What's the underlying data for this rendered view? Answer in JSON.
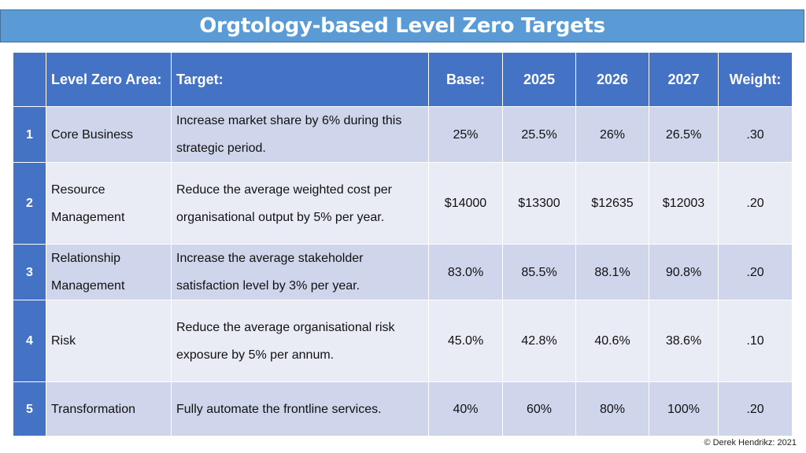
{
  "title": "Orgtology-based Level Zero Targets",
  "table": {
    "headers": {
      "area": "Level Zero Area:",
      "target": "Target:",
      "base": "Base:",
      "y2025": "2025",
      "y2026": "2026",
      "y2027": "2027",
      "weight": "Weight:"
    },
    "rows": [
      {
        "num": "1",
        "area": [
          "Core Business"
        ],
        "target": [
          "Increase market share by 6% during this",
          "strategic period."
        ],
        "base": "25%",
        "y2025": "25.5%",
        "y2026": "26%",
        "y2027": "26.5%",
        "weight": ".30"
      },
      {
        "num": "2",
        "area": [
          "Resource",
          "Management"
        ],
        "target": [
          "Reduce the average weighted cost per",
          "organisational output by 5% per year."
        ],
        "base": "$14000",
        "y2025": "$13300",
        "y2026": "$12635",
        "y2027": "$12003",
        "weight": ".20"
      },
      {
        "num": "3",
        "area": [
          "Relationship",
          "Management"
        ],
        "target": [
          "Increase the average stakeholder",
          "satisfaction level by 3% per year."
        ],
        "base": "83.0%",
        "y2025": "85.5%",
        "y2026": "88.1%",
        "y2027": "90.8%",
        "weight": ".20"
      },
      {
        "num": "4",
        "area": [
          "Risk"
        ],
        "target": [
          "Reduce the average organisational risk",
          "exposure by 5% per annum."
        ],
        "base": "45.0%",
        "y2025": "42.8%",
        "y2026": "40.6%",
        "y2027": "38.6%",
        "weight": ".10"
      },
      {
        "num": "5",
        "area": [
          "Transformation"
        ],
        "target": [
          "Fully automate the frontline services."
        ],
        "base": "40%",
        "y2025": "60%",
        "y2026": "80%",
        "y2027": "100%",
        "weight": ".20"
      }
    ]
  },
  "copyright": "© Derek Hendrikz: 2021"
}
